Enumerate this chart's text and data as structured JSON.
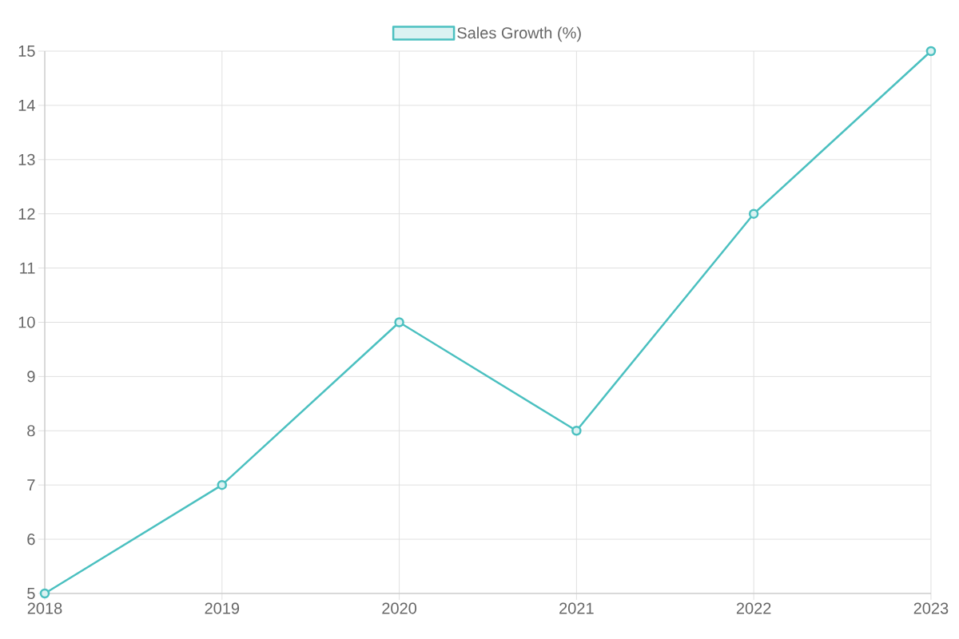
{
  "chart_data": {
    "type": "line",
    "categories": [
      "2018",
      "2019",
      "2020",
      "2021",
      "2022",
      "2023"
    ],
    "series": [
      {
        "name": "Sales Growth (%)",
        "color": "#4bc0c0",
        "values": [
          5,
          7,
          10,
          8,
          12,
          15
        ]
      }
    ],
    "ylim": [
      5,
      15
    ],
    "yticks": [
      5,
      6,
      7,
      8,
      9,
      10,
      11,
      12,
      13,
      14,
      15
    ],
    "grid": true,
    "legend": "top",
    "marker": "circle",
    "line_style": "solid"
  }
}
